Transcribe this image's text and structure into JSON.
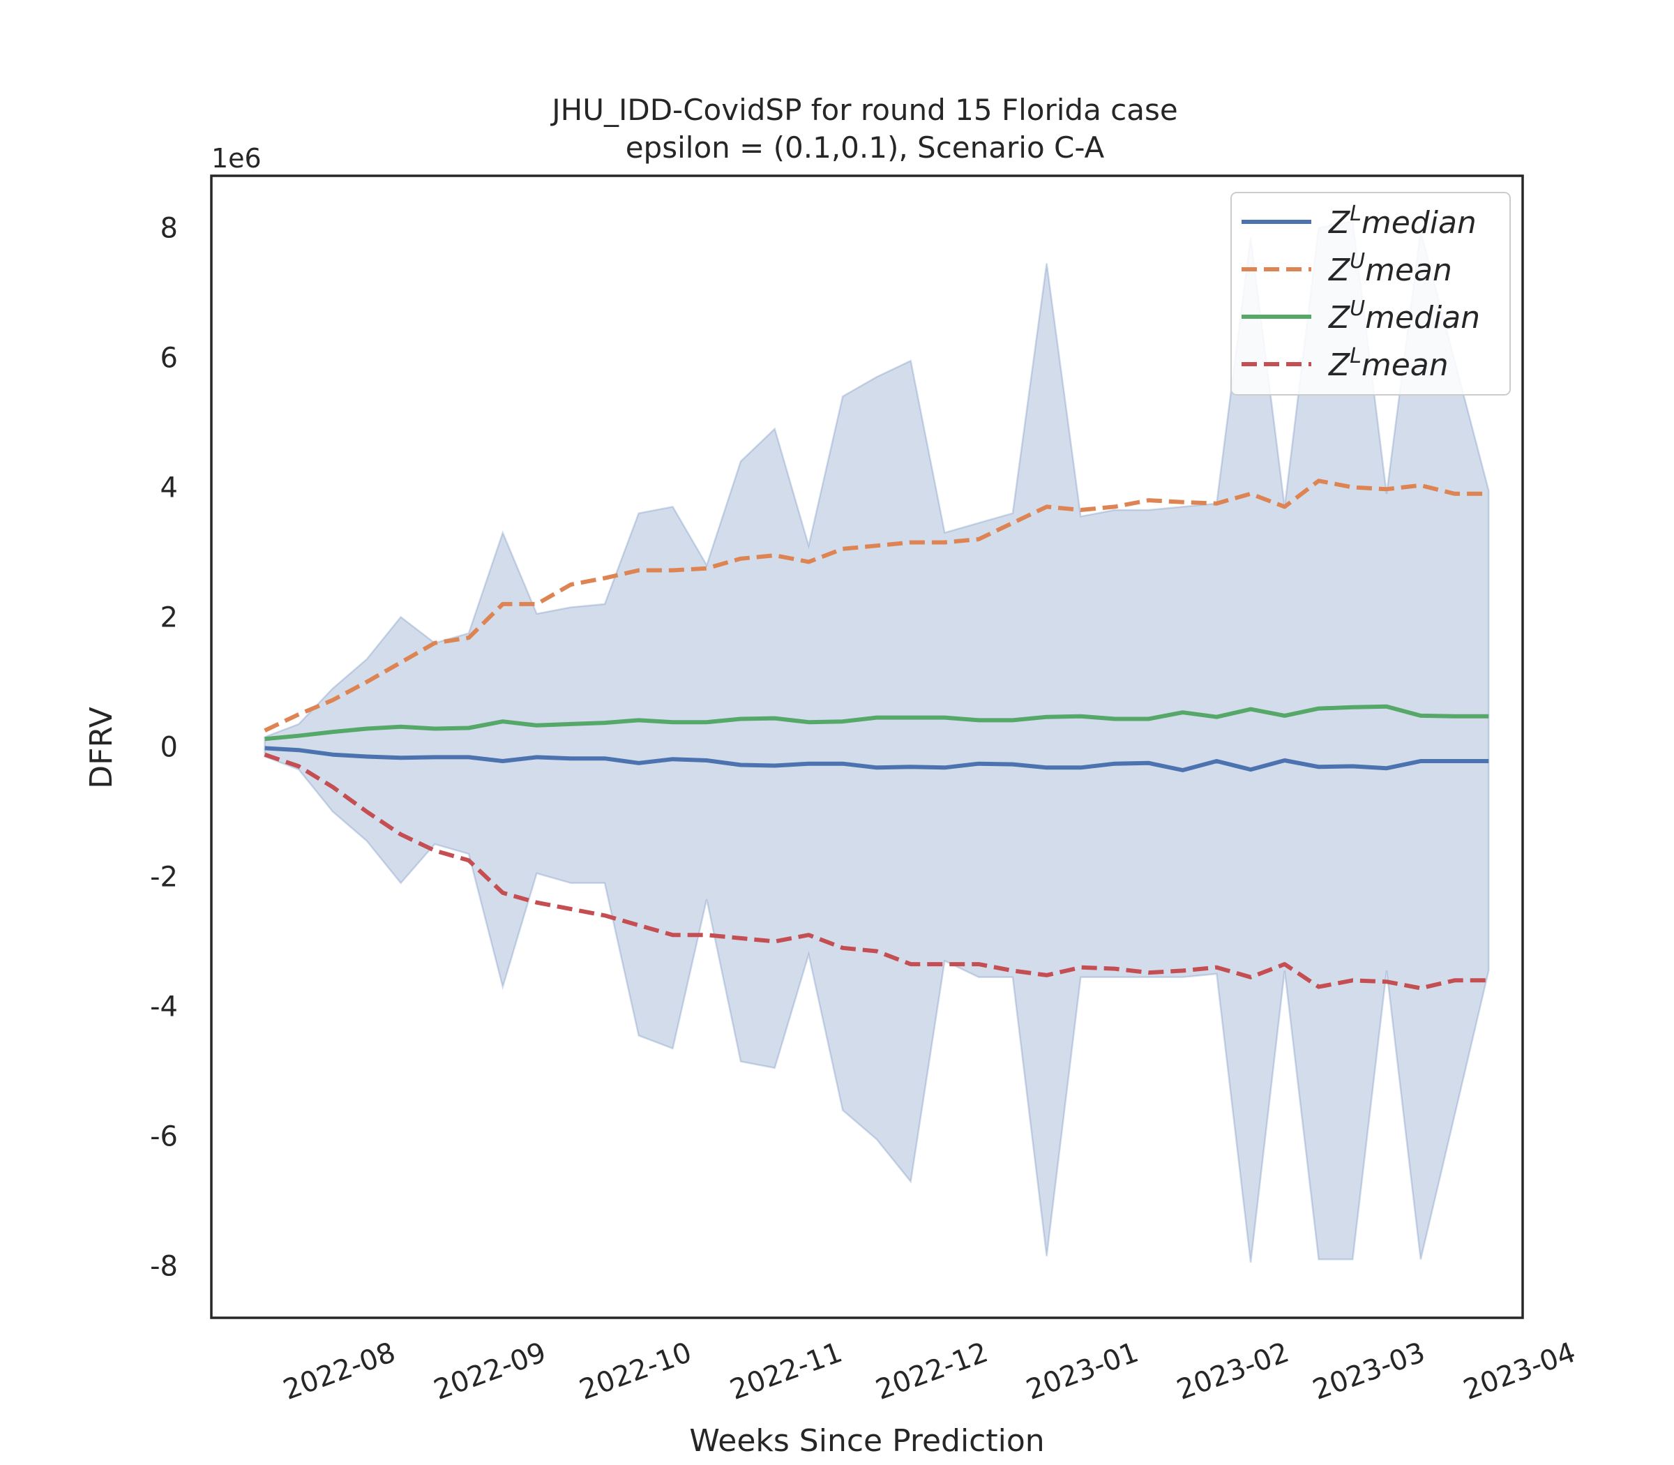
{
  "chart_data": {
    "type": "line",
    "title_line1": "JHU_IDD-CovidSP for round 15 Florida  case",
    "title_line2": "epsilon = (0.1,0.1), Scenario C-A",
    "xlabel": "Weeks Since Prediction",
    "ylabel": "DFRV",
    "y_offset_label": "1e6",
    "y_scale": 1000000,
    "xlim": [
      "2022-07-05",
      "2023-04-01"
    ],
    "ylim": [
      -8.8,
      8.8
    ],
    "x_ticks": [
      {
        "date": "2022-08-01",
        "label": "2022-08"
      },
      {
        "date": "2022-09-01",
        "label": "2022-09"
      },
      {
        "date": "2022-10-01",
        "label": "2022-10"
      },
      {
        "date": "2022-11-01",
        "label": "2022-11"
      },
      {
        "date": "2022-12-01",
        "label": "2022-12"
      },
      {
        "date": "2023-01-01",
        "label": "2023-01"
      },
      {
        "date": "2023-02-01",
        "label": "2023-02"
      },
      {
        "date": "2023-03-01",
        "label": "2023-03"
      },
      {
        "date": "2023-04-01",
        "label": "2023-04"
      }
    ],
    "y_ticks": [
      -8,
      -6,
      -4,
      -2,
      0,
      2,
      4,
      6,
      8
    ],
    "grid": false,
    "legend_position": "top-right",
    "x": [
      "2022-07-16",
      "2022-07-23",
      "2022-07-30",
      "2022-08-06",
      "2022-08-13",
      "2022-08-20",
      "2022-08-27",
      "2022-09-03",
      "2022-09-10",
      "2022-09-17",
      "2022-09-24",
      "2022-10-01",
      "2022-10-08",
      "2022-10-15",
      "2022-10-22",
      "2022-10-29",
      "2022-11-05",
      "2022-11-12",
      "2022-11-19",
      "2022-11-26",
      "2022-12-03",
      "2022-12-10",
      "2022-12-17",
      "2022-12-24",
      "2022-12-31",
      "2023-01-07",
      "2023-01-14",
      "2023-01-21",
      "2023-01-28",
      "2023-02-04",
      "2023-02-11",
      "2023-02-18",
      "2023-02-25",
      "2023-03-04",
      "2023-03-11",
      "2023-03-18",
      "2023-03-25"
    ],
    "band": {
      "upper": [
        0.15,
        0.35,
        0.9,
        1.35,
        2.0,
        1.6,
        1.75,
        3.3,
        2.05,
        2.15,
        2.2,
        3.6,
        3.7,
        2.8,
        4.4,
        4.9,
        3.1,
        5.4,
        5.7,
        5.95,
        3.3,
        3.45,
        3.6,
        7.45,
        3.55,
        3.65,
        3.65,
        3.7,
        3.75,
        7.85,
        3.7,
        8.0,
        8.1,
        3.9,
        7.95,
        3.95
      ],
      "lower": [
        -0.15,
        -0.35,
        -1.0,
        -1.45,
        -2.1,
        -1.5,
        -1.65,
        -3.7,
        -1.95,
        -2.1,
        -2.1,
        -4.45,
        -4.65,
        -2.35,
        -4.85,
        -4.95,
        -3.2,
        -5.6,
        -6.05,
        -6.7,
        -3.3,
        -3.55,
        -3.55,
        -7.85,
        -3.55,
        -3.55,
        -3.55,
        -3.55,
        -3.5,
        -7.95,
        -3.45,
        -7.9,
        -7.9,
        -3.45,
        -7.9,
        -3.45
      ],
      "x_index": [
        0,
        1,
        2,
        3,
        4,
        5,
        6,
        7,
        8,
        9,
        10,
        11,
        12,
        13,
        14,
        15,
        16,
        17,
        18,
        19,
        20,
        21,
        22,
        23,
        24,
        25,
        26,
        27,
        28,
        29,
        30,
        31,
        32,
        33,
        34,
        36
      ]
    },
    "series": [
      {
        "name": "Z^L median",
        "legend_base": "Z",
        "legend_sup": "L",
        "legend_rest": "median",
        "color": "#4c72b0",
        "dash": "solid",
        "values": [
          -0.02,
          -0.05,
          -0.12,
          -0.15,
          -0.17,
          -0.16,
          -0.16,
          -0.22,
          -0.16,
          -0.18,
          -0.18,
          -0.25,
          -0.19,
          -0.21,
          -0.28,
          -0.29,
          -0.26,
          -0.26,
          -0.32,
          -0.31,
          -0.32,
          -0.26,
          -0.27,
          -0.32,
          -0.32,
          -0.26,
          -0.25,
          -0.36,
          -0.22,
          -0.35,
          -0.21,
          -0.31,
          -0.3,
          -0.33,
          -0.22,
          -0.22,
          -0.22
        ]
      },
      {
        "name": "Z^U mean",
        "legend_base": "Z",
        "legend_sup": "U",
        "legend_rest": "mean",
        "color": "#dd8452",
        "dash": "dashed",
        "values": [
          0.25,
          0.5,
          0.72,
          1.0,
          1.3,
          1.6,
          1.68,
          2.2,
          2.2,
          2.5,
          2.6,
          2.72,
          2.72,
          2.75,
          2.9,
          2.95,
          2.85,
          3.05,
          3.1,
          3.15,
          3.15,
          3.2,
          3.45,
          3.7,
          3.65,
          3.7,
          3.8,
          3.77,
          3.75,
          3.9,
          3.7,
          4.1,
          4.0,
          3.97,
          4.03,
          3.9,
          3.9
        ]
      },
      {
        "name": "Z^U median",
        "legend_base": "Z",
        "legend_sup": "U",
        "legend_rest": "median",
        "color": "#55a868",
        "dash": "solid",
        "values": [
          0.12,
          0.17,
          0.23,
          0.28,
          0.31,
          0.28,
          0.29,
          0.39,
          0.33,
          0.35,
          0.37,
          0.41,
          0.38,
          0.38,
          0.43,
          0.44,
          0.38,
          0.39,
          0.45,
          0.45,
          0.45,
          0.41,
          0.41,
          0.46,
          0.47,
          0.43,
          0.43,
          0.53,
          0.46,
          0.58,
          0.48,
          0.59,
          0.61,
          0.62,
          0.48,
          0.47,
          0.47
        ]
      },
      {
        "name": "Z^L mean",
        "legend_base": "Z",
        "legend_sup": "L",
        "legend_rest": "mean",
        "color": "#c44e52",
        "dash": "dashed",
        "values": [
          -0.12,
          -0.3,
          -0.62,
          -1.0,
          -1.35,
          -1.6,
          -1.75,
          -2.25,
          -2.4,
          -2.5,
          -2.6,
          -2.75,
          -2.9,
          -2.9,
          -2.95,
          -3.0,
          -2.9,
          -3.1,
          -3.15,
          -3.35,
          -3.35,
          -3.35,
          -3.45,
          -3.52,
          -3.4,
          -3.42,
          -3.48,
          -3.45,
          -3.4,
          -3.55,
          -3.35,
          -3.7,
          -3.6,
          -3.62,
          -3.72,
          -3.6,
          -3.6
        ]
      }
    ]
  }
}
